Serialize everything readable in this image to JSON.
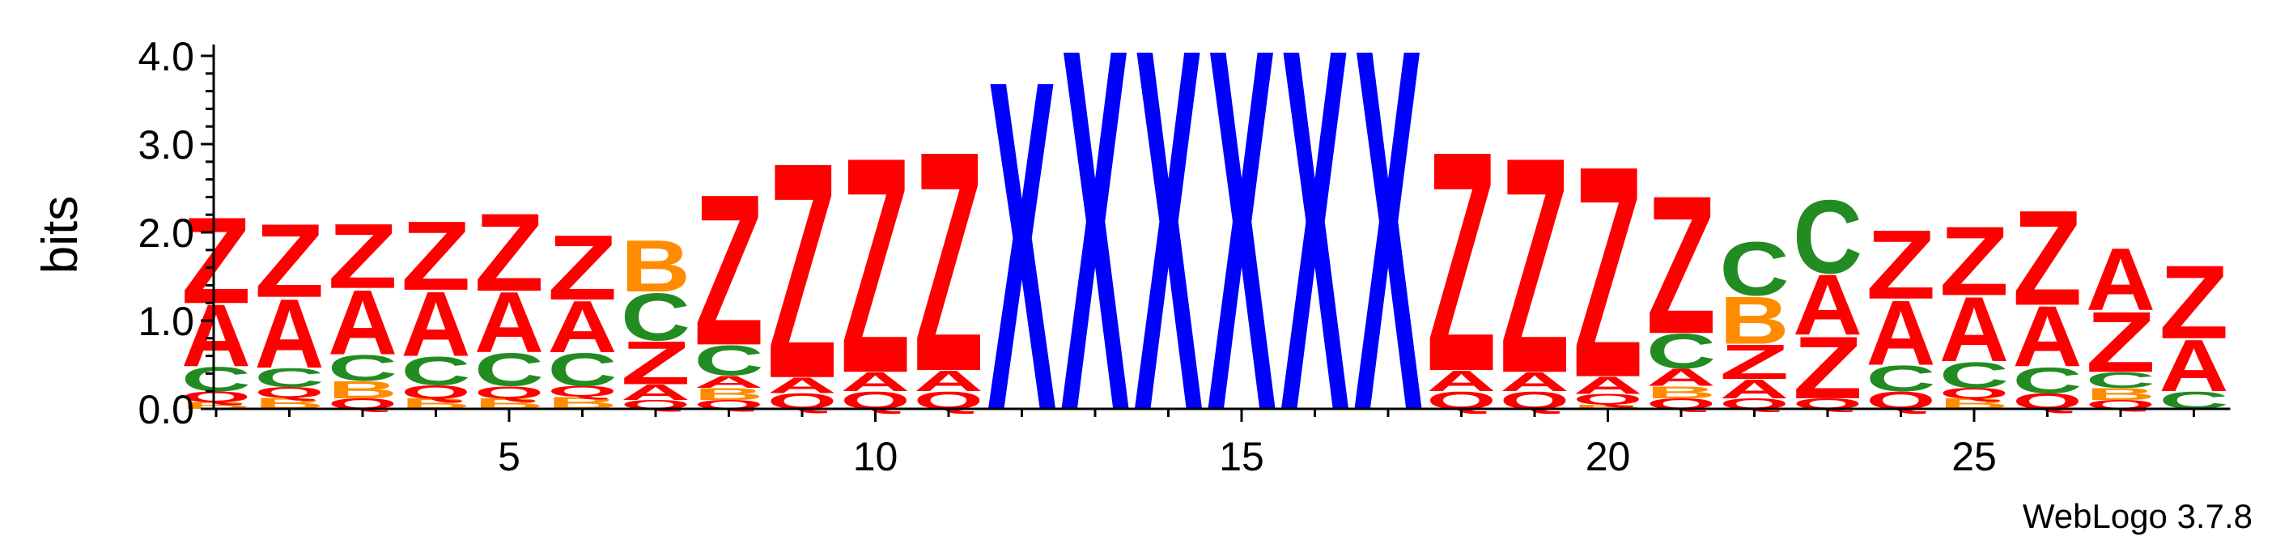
{
  "chart_data": {
    "type": "sequence-logo",
    "ylabel": "bits",
    "ylim": [
      0,
      4.0
    ],
    "yticks": [
      "0.0",
      "1.0",
      "2.0",
      "3.0",
      "4.0"
    ],
    "xticks": [
      "5",
      "10",
      "15",
      "20",
      "25"
    ],
    "xtick_positions": [
      5,
      10,
      15,
      20,
      25
    ],
    "credit": "WebLogo 3.7.8",
    "colors": {
      "Z": "#ff0000",
      "A": "#ff0000",
      "Q": "#ff0000",
      "X": "#0000ff",
      "C": "#228b22",
      "B": "#ff8c00"
    },
    "positions": [
      {
        "pos": 1,
        "stack": [
          [
            "B",
            0.08
          ],
          [
            "Q",
            0.12
          ],
          [
            "C",
            0.28
          ],
          [
            "A",
            0.72
          ],
          [
            "Z",
            1.0
          ]
        ]
      },
      {
        "pos": 2,
        "stack": [
          [
            "B",
            0.13
          ],
          [
            "Q",
            0.12
          ],
          [
            "C",
            0.22
          ],
          [
            "A",
            0.8
          ],
          [
            "Z",
            0.85
          ]
        ]
      },
      {
        "pos": 3,
        "stack": [
          [
            "Q",
            0.12
          ],
          [
            "B",
            0.2
          ],
          [
            "C",
            0.3
          ],
          [
            "A",
            0.75
          ],
          [
            "Z",
            0.75
          ]
        ]
      },
      {
        "pos": 4,
        "stack": [
          [
            "B",
            0.12
          ],
          [
            "Q",
            0.15
          ],
          [
            "C",
            0.33
          ],
          [
            "A",
            0.75
          ],
          [
            "Z",
            0.8
          ]
        ]
      },
      {
        "pos": 5,
        "stack": [
          [
            "B",
            0.12
          ],
          [
            "Q",
            0.14
          ],
          [
            "C",
            0.38
          ],
          [
            "A",
            0.7
          ],
          [
            "Z",
            0.9
          ]
        ]
      },
      {
        "pos": 6,
        "stack": [
          [
            "B",
            0.14
          ],
          [
            "Q",
            0.12
          ],
          [
            "C",
            0.38
          ],
          [
            "A",
            0.6
          ],
          [
            "Z",
            0.75
          ]
        ]
      },
      {
        "pos": 7,
        "stack": [
          [
            "Q",
            0.1
          ],
          [
            "A",
            0.18
          ],
          [
            "Z",
            0.5
          ],
          [
            "C",
            0.55
          ],
          [
            "B",
            0.6
          ]
        ]
      },
      {
        "pos": 8,
        "stack": [
          [
            "Q",
            0.1
          ],
          [
            "B",
            0.14
          ],
          [
            "A",
            0.14
          ],
          [
            "C",
            0.35
          ],
          [
            "Z",
            1.75
          ]
        ]
      },
      {
        "pos": 9,
        "stack": [
          [
            "Q",
            0.18
          ],
          [
            "A",
            0.18
          ],
          [
            "Z",
            2.5
          ]
        ]
      },
      {
        "pos": 10,
        "stack": [
          [
            "Q",
            0.2
          ],
          [
            "A",
            0.22
          ],
          [
            "Z",
            2.5
          ]
        ]
      },
      {
        "pos": 11,
        "stack": [
          [
            "Q",
            0.2
          ],
          [
            "A",
            0.24
          ],
          [
            "Z",
            2.55
          ]
        ]
      },
      {
        "pos": 12,
        "stack": [
          [
            "X",
            3.83
          ]
        ]
      },
      {
        "pos": 13,
        "stack": [
          [
            "X",
            4.2
          ]
        ]
      },
      {
        "pos": 14,
        "stack": [
          [
            "X",
            4.2
          ]
        ]
      },
      {
        "pos": 15,
        "stack": [
          [
            "X",
            4.2
          ]
        ]
      },
      {
        "pos": 16,
        "stack": [
          [
            "X",
            4.2
          ]
        ]
      },
      {
        "pos": 17,
        "stack": [
          [
            "X",
            4.2
          ]
        ]
      },
      {
        "pos": 18,
        "stack": [
          [
            "Q",
            0.2
          ],
          [
            "A",
            0.24
          ],
          [
            "Z",
            2.55
          ]
        ]
      },
      {
        "pos": 19,
        "stack": [
          [
            "Q",
            0.2
          ],
          [
            "A",
            0.22
          ],
          [
            "Z",
            2.5
          ]
        ]
      },
      {
        "pos": 20,
        "stack": [
          [
            "B",
            0.05
          ],
          [
            "Q",
            0.12
          ],
          [
            "A",
            0.2
          ],
          [
            "Z",
            2.45
          ]
        ]
      },
      {
        "pos": 21,
        "stack": [
          [
            "Q",
            0.12
          ],
          [
            "B",
            0.14
          ],
          [
            "A",
            0.2
          ],
          [
            "C",
            0.4
          ],
          [
            "Z",
            1.6
          ]
        ]
      },
      {
        "pos": 22,
        "stack": [
          [
            "Q",
            0.12
          ],
          [
            "A",
            0.22
          ],
          [
            "Z",
            0.4
          ],
          [
            "B",
            0.55
          ],
          [
            "C",
            0.62
          ]
        ]
      },
      {
        "pos": 23,
        "stack": [
          [
            "Q",
            0.12
          ],
          [
            "Z",
            0.72
          ],
          [
            "A",
            0.7
          ],
          [
            "C",
            0.85
          ]
        ]
      },
      {
        "pos": 24,
        "stack": [
          [
            "Q",
            0.2
          ],
          [
            "C",
            0.3
          ],
          [
            "A",
            0.75
          ],
          [
            "Z",
            0.8
          ]
        ]
      },
      {
        "pos": 25,
        "stack": [
          [
            "B",
            0.12
          ],
          [
            "Q",
            0.12
          ],
          [
            "C",
            0.3
          ],
          [
            "A",
            0.75
          ],
          [
            "Z",
            0.8
          ]
        ]
      },
      {
        "pos": 26,
        "stack": [
          [
            "Q",
            0.18
          ],
          [
            "C",
            0.3
          ],
          [
            "A",
            0.7
          ],
          [
            "Z",
            1.1
          ]
        ]
      },
      {
        "pos": 27,
        "stack": [
          [
            "Q",
            0.1
          ],
          [
            "B",
            0.14
          ],
          [
            "C",
            0.18
          ],
          [
            "Z",
            0.7
          ],
          [
            "A",
            0.72
          ]
        ]
      },
      {
        "pos": 28,
        "stack": [
          [
            "C",
            0.2
          ],
          [
            "A",
            0.6
          ],
          [
            "Z",
            0.85
          ]
        ]
      }
    ]
  }
}
